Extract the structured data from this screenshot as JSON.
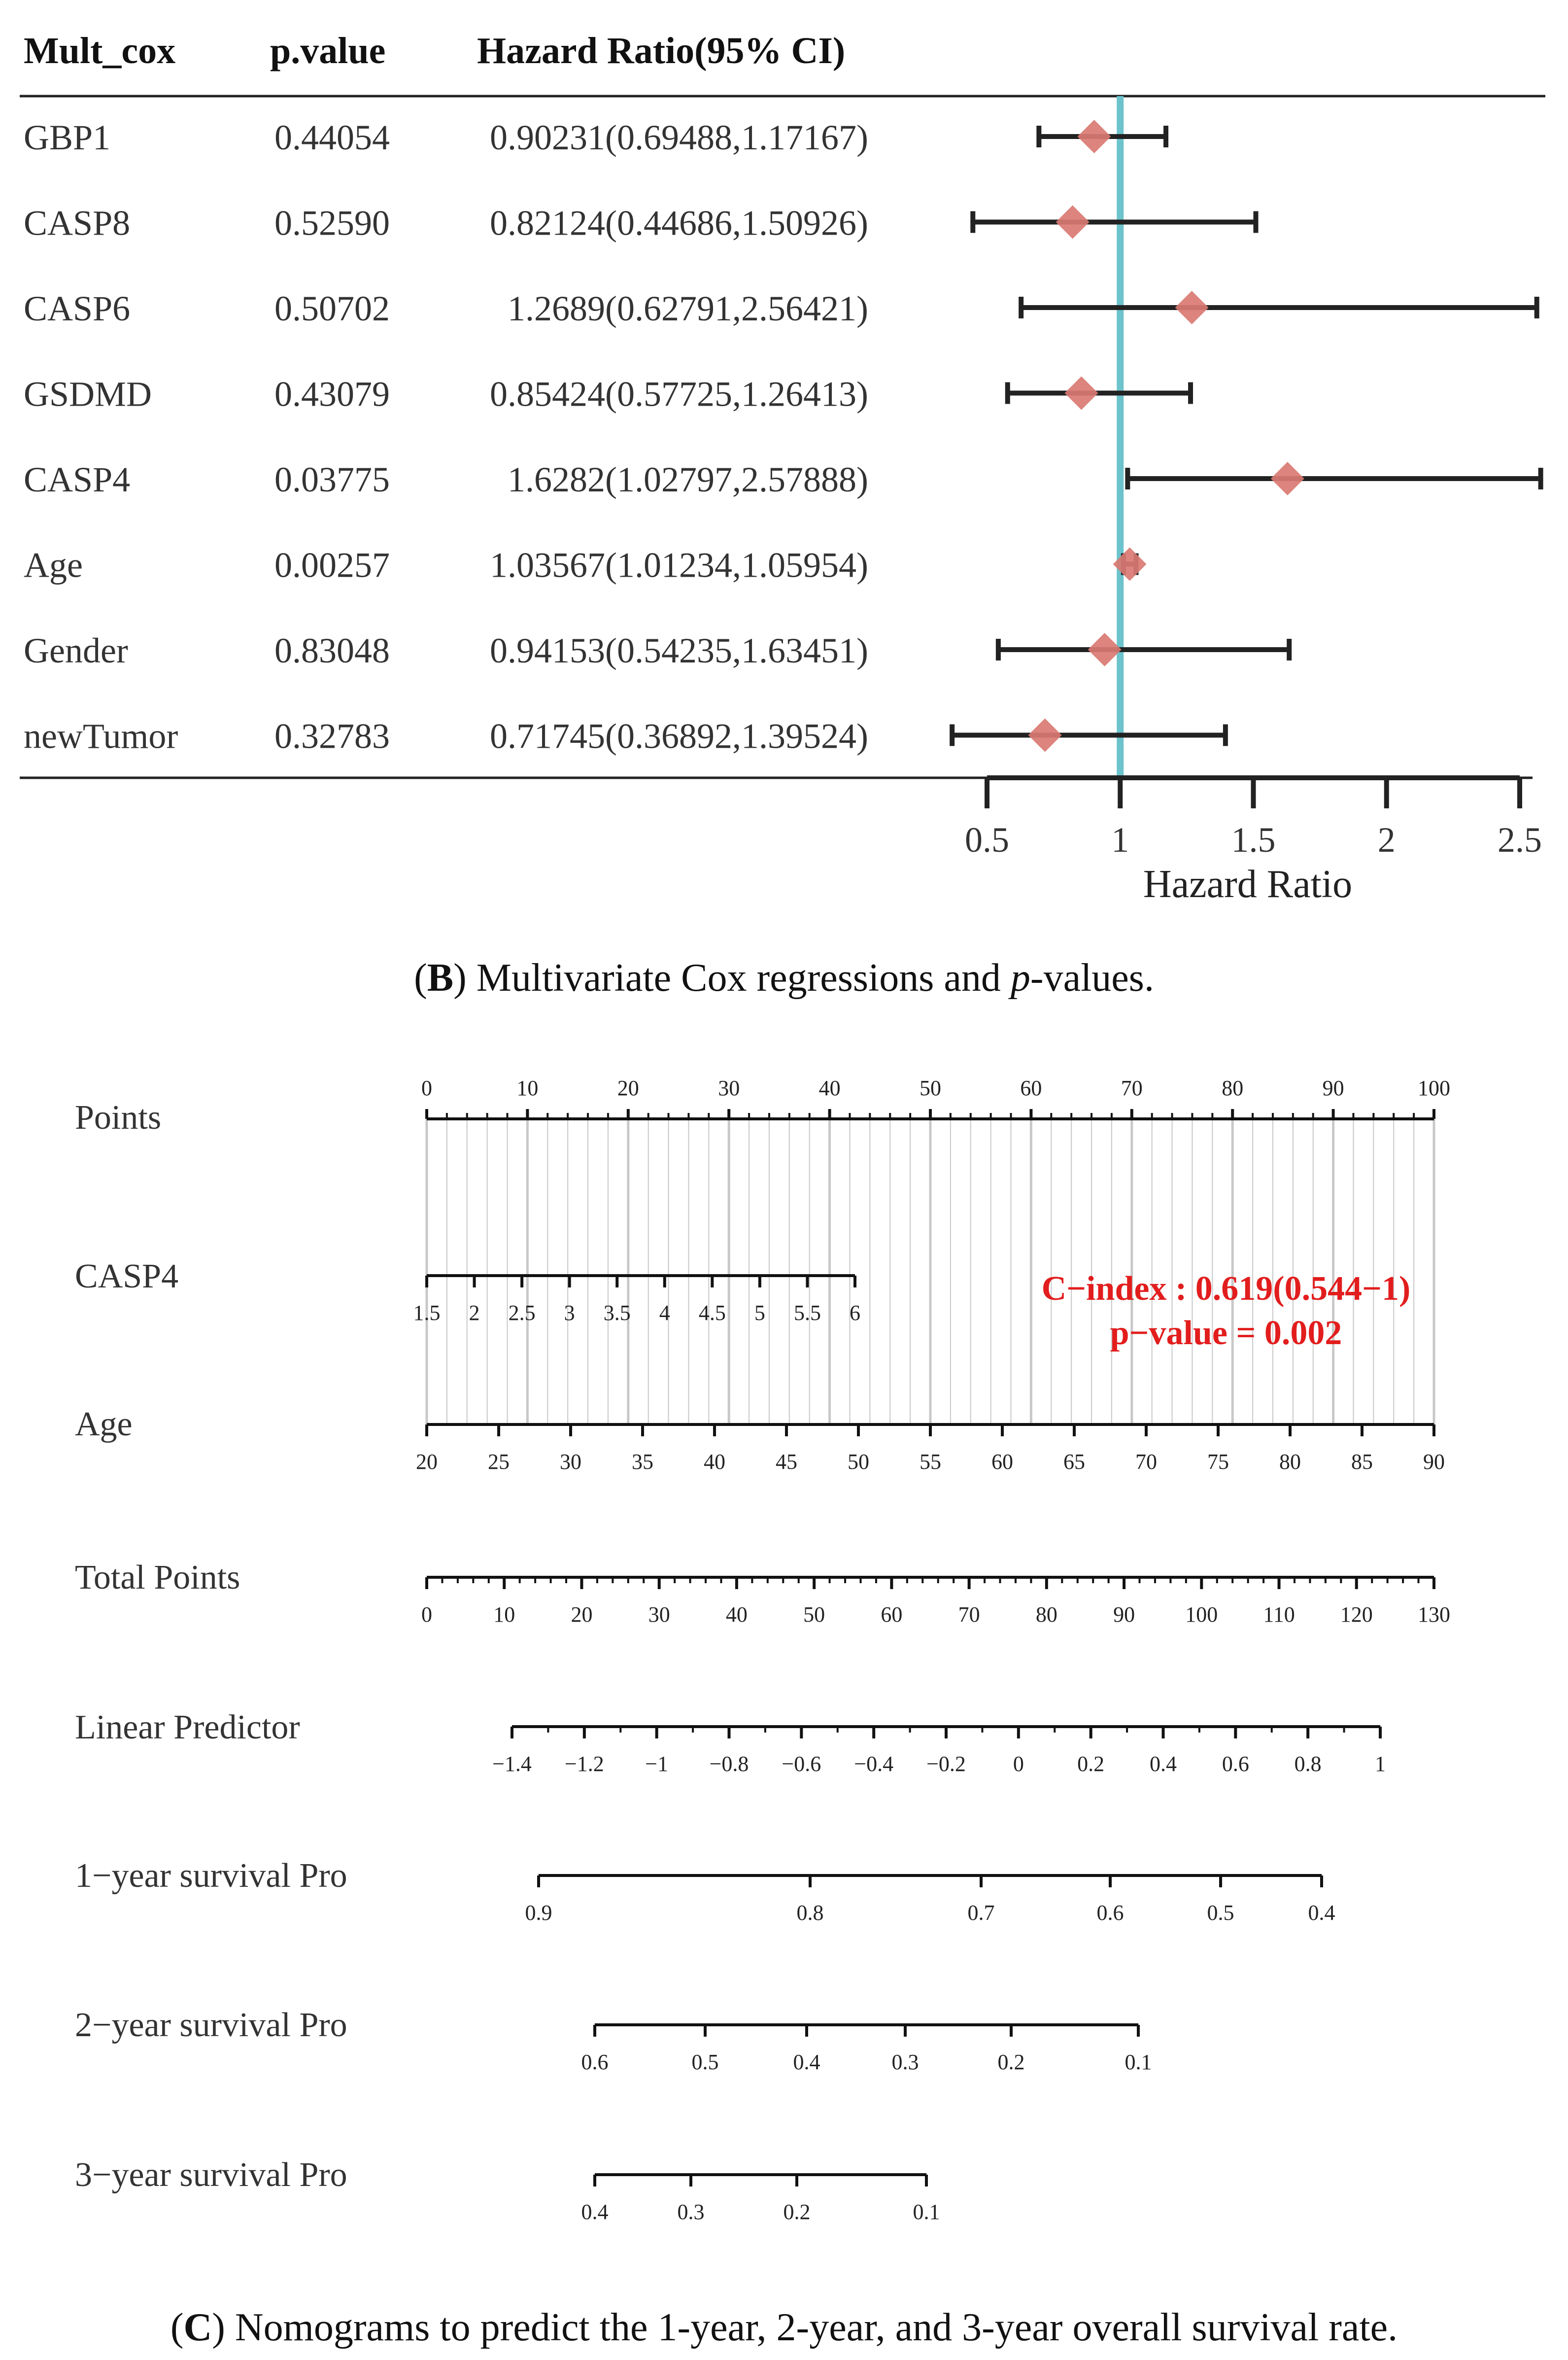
{
  "forest": {
    "columns": [
      "Mult_cox",
      "p.value",
      "Hazard Ratio(95% CI)"
    ],
    "rows": [
      {
        "name": "GBP1",
        "p": "0.44054",
        "ci_text": "0.90231(0.69488,1.17167)",
        "hr": 0.90231,
        "lo": 0.69488,
        "hi": 1.17167
      },
      {
        "name": "CASP8",
        "p": "0.52590",
        "ci_text": "0.82124(0.44686,1.50926)",
        "hr": 0.82124,
        "lo": 0.44686,
        "hi": 1.50926
      },
      {
        "name": "CASP6",
        "p": "0.50702",
        "ci_text": "1.2689(0.62791,2.56421)",
        "hr": 1.2689,
        "lo": 0.62791,
        "hi": 2.56421
      },
      {
        "name": "GSDMD",
        "p": "0.43079",
        "ci_text": "0.85424(0.57725,1.26413)",
        "hr": 0.85424,
        "lo": 0.57725,
        "hi": 1.26413
      },
      {
        "name": "CASP4",
        "p": "0.03775",
        "ci_text": "1.6282(1.02797,2.57888)",
        "hr": 1.6282,
        "lo": 1.02797,
        "hi": 2.57888
      },
      {
        "name": "Age",
        "p": "0.00257",
        "ci_text": "1.03567(1.01234,1.05954)",
        "hr": 1.03567,
        "lo": 1.01234,
        "hi": 1.05954
      },
      {
        "name": "Gender",
        "p": "0.83048",
        "ci_text": "0.94153(0.54235,1.63451)",
        "hr": 0.94153,
        "lo": 0.54235,
        "hi": 1.63451
      },
      {
        "name": "newTumor",
        "p": "0.32783",
        "ci_text": "0.71745(0.36892,1.39524)",
        "hr": 0.71745,
        "lo": 0.36892,
        "hi": 1.39524
      }
    ],
    "axis_ticks": [
      "0.5",
      "1",
      "1.5",
      "2",
      "2.5"
    ],
    "xlabel": "Hazard Ratio",
    "reference_line": 1,
    "colors": {
      "marker": "#d97a72",
      "reference": "#6cc3cc",
      "line": "#222222"
    }
  },
  "captions": {
    "b_letter": "B",
    "b_text1": " Multivariate Cox regressions and ",
    "b_italic": "p",
    "b_text2": "-values.",
    "c_letter": "C",
    "c_text": " Nomograms to predict the 1-year, 2-year, and 3-year overall survival rate."
  },
  "nomogram": {
    "rows": [
      {
        "label": "Points",
        "ticks": [
          "0",
          "10",
          "20",
          "30",
          "40",
          "50",
          "60",
          "70",
          "80",
          "90",
          "100"
        ]
      },
      {
        "label": "CASP4",
        "ticks": [
          "1.5",
          "2",
          "2.5",
          "3",
          "3.5",
          "4",
          "4.5",
          "5",
          "5.5",
          "6"
        ]
      },
      {
        "label": "Age",
        "ticks": [
          "20",
          "25",
          "30",
          "35",
          "40",
          "45",
          "50",
          "55",
          "60",
          "65",
          "70",
          "75",
          "80",
          "85",
          "90"
        ]
      },
      {
        "label": "Total Points",
        "ticks": [
          "0",
          "10",
          "20",
          "30",
          "40",
          "50",
          "60",
          "70",
          "80",
          "90",
          "100",
          "110",
          "120",
          "130"
        ]
      },
      {
        "label": "Linear Predictor",
        "ticks": [
          "−1.4",
          "−1.2",
          "−1",
          "−0.8",
          "−0.6",
          "−0.4",
          "−0.2",
          "0",
          "0.2",
          "0.4",
          "0.6",
          "0.8",
          "1"
        ]
      },
      {
        "label": "1−year survival Pro",
        "ticks": [
          "0.9",
          "0.8",
          "0.7",
          "0.6",
          "0.5",
          "0.4"
        ]
      },
      {
        "label": "2−year survival Pro",
        "ticks": [
          "0.6",
          "0.5",
          "0.4",
          "0.3",
          "0.2",
          "0.1"
        ]
      },
      {
        "label": "3−year survival Pro",
        "ticks": [
          "0.4",
          "0.3",
          "0.2",
          "0.1"
        ]
      }
    ],
    "cindex": "C−index : 0.619(0.544−1)",
    "pvalue": "p−value = 0.002",
    "colors": {
      "annotation": "#e21d1d",
      "grid": "#c8c8c8"
    }
  },
  "chart_data": [
    {
      "type": "forest",
      "title": "Multivariate Cox regressions and p-values",
      "xlabel": "Hazard Ratio",
      "xlim": [
        0.5,
        2.5
      ],
      "categories": [
        "GBP1",
        "CASP8",
        "CASP6",
        "GSDMD",
        "CASP4",
        "Age",
        "Gender",
        "newTumor"
      ],
      "hr": [
        0.90231,
        0.82124,
        1.2689,
        0.85424,
        1.6282,
        1.03567,
        0.94153,
        0.71745
      ],
      "ci_low": [
        0.69488,
        0.44686,
        0.62791,
        0.57725,
        1.02797,
        1.01234,
        0.54235,
        0.36892
      ],
      "ci_high": [
        1.17167,
        1.50926,
        2.56421,
        1.26413,
        2.57888,
        1.05954,
        1.63451,
        1.39524
      ],
      "p_values": [
        0.44054,
        0.5259,
        0.50702,
        0.43079,
        0.03775,
        0.00257,
        0.83048,
        0.32783
      ]
    },
    {
      "type": "nomogram",
      "title": "Nomograms to predict the 1-year, 2-year, and 3-year overall survival rate",
      "points_range": [
        0,
        100
      ],
      "casp4_range": [
        1.5,
        6
      ],
      "age_range": [
        20,
        90
      ],
      "total_points_range": [
        0,
        130
      ],
      "linear_predictor_range": [
        -1.4,
        1
      ],
      "survival_1yr_ticks": [
        0.9,
        0.8,
        0.7,
        0.6,
        0.5,
        0.4
      ],
      "survival_2yr_ticks": [
        0.6,
        0.5,
        0.4,
        0.3,
        0.2,
        0.1
      ],
      "survival_3yr_ticks": [
        0.4,
        0.3,
        0.2,
        0.1
      ],
      "c_index": 0.619,
      "c_index_ci": [
        0.544,
        1
      ],
      "p_value": 0.002
    }
  ]
}
